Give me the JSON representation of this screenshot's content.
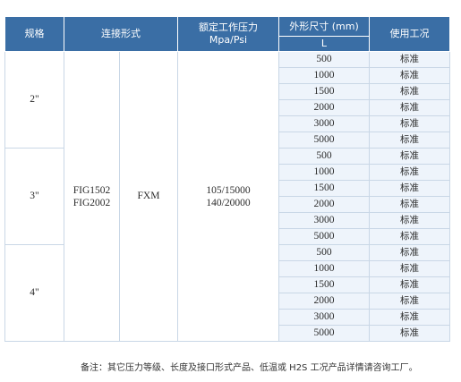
{
  "table": {
    "headers": {
      "size": "规格",
      "connection": "连接形式",
      "pressure_line1": "额定工作压力",
      "pressure_line2": "Mpa/Psi",
      "dimension": "外形尺寸 (mm)",
      "dimension_sub": "L",
      "condition": "使用工况"
    },
    "connection_codes": [
      "FIG1502",
      "FIG2002"
    ],
    "connection_type": "FXM",
    "pressures": [
      "105/15000",
      "140/20000"
    ],
    "groups": [
      {
        "size": "2\"",
        "rows": [
          {
            "length": "500",
            "condition": "标准"
          },
          {
            "length": "1000",
            "condition": "标准"
          },
          {
            "length": "1500",
            "condition": "标准"
          },
          {
            "length": "2000",
            "condition": "标准"
          },
          {
            "length": "3000",
            "condition": "标准"
          },
          {
            "length": "5000",
            "condition": "标准"
          }
        ]
      },
      {
        "size": "3\"",
        "rows": [
          {
            "length": "500",
            "condition": "标准"
          },
          {
            "length": "1000",
            "condition": "标准"
          },
          {
            "length": "1500",
            "condition": "标准"
          },
          {
            "length": "2000",
            "condition": "标准"
          },
          {
            "length": "3000",
            "condition": "标准"
          },
          {
            "length": "5000",
            "condition": "标准"
          }
        ]
      },
      {
        "size": "4\"",
        "rows": [
          {
            "length": "500",
            "condition": "标准"
          },
          {
            "length": "1000",
            "condition": "标准"
          },
          {
            "length": "1500",
            "condition": "标准"
          },
          {
            "length": "2000",
            "condition": "标准"
          },
          {
            "length": "3000",
            "condition": "标准"
          },
          {
            "length": "5000",
            "condition": "标准"
          }
        ]
      }
    ]
  },
  "note": "备注：其它压力等级、长度及接口形式产品、低温或 H2S 工况产品详情请咨询工厂。",
  "colors": {
    "header_bg": "#3a6ea5",
    "row_tint": "#eef4fb",
    "border": "#c9d7e6"
  }
}
